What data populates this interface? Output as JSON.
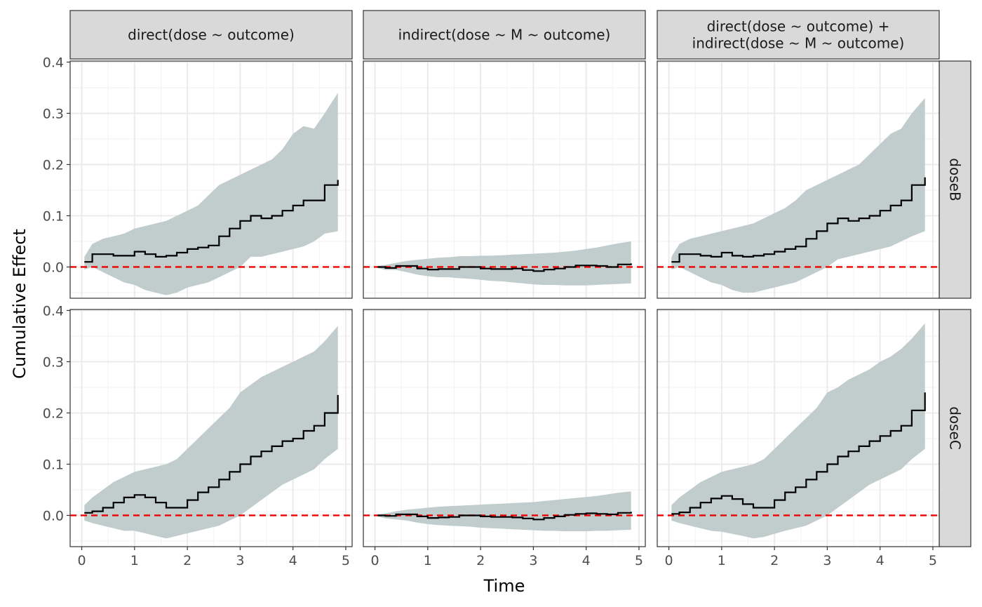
{
  "chart_data": {
    "type": "line",
    "xlabel": "Time",
    "ylabel": "Cumulative Effect",
    "xlim": [
      -0.22,
      5.12
    ],
    "ylim": [
      -0.061,
      0.402
    ],
    "x_ticks": [
      0,
      1,
      2,
      3,
      4,
      5
    ],
    "x_tick_labels": [
      "0",
      "1",
      "2",
      "3",
      "4",
      "5"
    ],
    "y_ticks": [
      0.0,
      0.1,
      0.2,
      0.3,
      0.4
    ],
    "y_tick_labels": [
      "0.0",
      "0.1",
      "0.2",
      "0.3",
      "0.4"
    ],
    "column_strips": [
      [
        "direct(dose ~ outcome)"
      ],
      [
        "indirect(dose ~ M ~ outcome)"
      ],
      [
        "direct(dose ~ outcome) +",
        "indirect(dose ~ M ~ outcome)"
      ]
    ],
    "row_strips": [
      "doseB",
      "doseC"
    ],
    "reference_line": 0,
    "colors": {
      "line": "#000000",
      "band": "#c1cccc",
      "reference": "#ee0000",
      "strip": "#d9d9d9",
      "grid": "#ebebeb"
    },
    "grid": true,
    "panels": [
      {
        "row": "doseB",
        "column": "direct(dose ~ outcome)",
        "x": [
          0.05,
          0.2,
          0.4,
          0.6,
          0.8,
          1.0,
          1.2,
          1.4,
          1.6,
          1.8,
          2.0,
          2.2,
          2.4,
          2.6,
          2.8,
          3.0,
          3.2,
          3.4,
          3.6,
          3.8,
          4.0,
          4.2,
          4.4,
          4.6,
          4.85
        ],
        "y": [
          0.01,
          0.025,
          0.025,
          0.022,
          0.022,
          0.03,
          0.025,
          0.02,
          0.022,
          0.028,
          0.035,
          0.038,
          0.042,
          0.06,
          0.075,
          0.09,
          0.1,
          0.095,
          0.1,
          0.11,
          0.12,
          0.13,
          0.13,
          0.16,
          0.17
        ],
        "lower": [
          -0.005,
          0.0,
          -0.01,
          -0.02,
          -0.03,
          -0.035,
          -0.045,
          -0.05,
          -0.055,
          -0.05,
          -0.04,
          -0.035,
          -0.03,
          -0.02,
          -0.01,
          0.0,
          0.02,
          0.02,
          0.025,
          0.03,
          0.035,
          0.04,
          0.05,
          0.065,
          0.07
        ],
        "upper": [
          0.02,
          0.045,
          0.055,
          0.06,
          0.065,
          0.075,
          0.08,
          0.085,
          0.09,
          0.1,
          0.11,
          0.12,
          0.14,
          0.16,
          0.17,
          0.18,
          0.19,
          0.2,
          0.21,
          0.23,
          0.26,
          0.275,
          0.27,
          0.3,
          0.34
        ]
      },
      {
        "row": "doseB",
        "column": "indirect(dose ~ M ~ outcome)",
        "x": [
          0.05,
          0.2,
          0.4,
          0.6,
          0.8,
          1.0,
          1.2,
          1.4,
          1.6,
          1.8,
          2.0,
          2.2,
          2.4,
          2.6,
          2.8,
          3.0,
          3.2,
          3.4,
          3.6,
          3.8,
          4.0,
          4.2,
          4.4,
          4.6,
          4.85
        ],
        "y": [
          0.0,
          -0.002,
          0.002,
          0.002,
          -0.003,
          -0.005,
          -0.004,
          -0.004,
          0.0,
          0.0,
          -0.003,
          -0.004,
          -0.004,
          -0.003,
          -0.006,
          -0.008,
          -0.005,
          -0.003,
          0.0,
          0.003,
          0.003,
          0.002,
          0.0,
          0.005,
          0.007
        ],
        "lower": [
          -0.002,
          -0.006,
          -0.006,
          -0.01,
          -0.015,
          -0.018,
          -0.02,
          -0.02,
          -0.022,
          -0.023,
          -0.025,
          -0.027,
          -0.028,
          -0.03,
          -0.032,
          -0.034,
          -0.035,
          -0.035,
          -0.036,
          -0.036,
          -0.036,
          -0.035,
          -0.034,
          -0.033,
          -0.032
        ],
        "upper": [
          0.002,
          0.004,
          0.008,
          0.012,
          0.014,
          0.016,
          0.018,
          0.019,
          0.021,
          0.021,
          0.022,
          0.022,
          0.023,
          0.024,
          0.025,
          0.026,
          0.027,
          0.028,
          0.03,
          0.032,
          0.035,
          0.038,
          0.042,
          0.046,
          0.05
        ]
      },
      {
        "row": "doseB",
        "column": "direct(dose ~ outcome) + indirect(dose ~ M ~ outcome)",
        "x": [
          0.05,
          0.2,
          0.4,
          0.6,
          0.8,
          1.0,
          1.2,
          1.4,
          1.6,
          1.8,
          2.0,
          2.2,
          2.4,
          2.6,
          2.8,
          3.0,
          3.2,
          3.4,
          3.6,
          3.8,
          4.0,
          4.2,
          4.4,
          4.6,
          4.85
        ],
        "y": [
          0.01,
          0.025,
          0.025,
          0.022,
          0.02,
          0.028,
          0.022,
          0.02,
          0.022,
          0.025,
          0.03,
          0.035,
          0.04,
          0.055,
          0.07,
          0.085,
          0.095,
          0.09,
          0.095,
          0.1,
          0.11,
          0.12,
          0.13,
          0.16,
          0.175
        ],
        "lower": [
          -0.005,
          0.0,
          -0.01,
          -0.02,
          -0.03,
          -0.035,
          -0.045,
          -0.05,
          -0.05,
          -0.045,
          -0.04,
          -0.035,
          -0.03,
          -0.02,
          -0.01,
          0.0,
          0.015,
          0.02,
          0.025,
          0.03,
          0.035,
          0.04,
          0.05,
          0.06,
          0.07
        ],
        "upper": [
          0.02,
          0.045,
          0.055,
          0.06,
          0.065,
          0.07,
          0.075,
          0.08,
          0.085,
          0.095,
          0.105,
          0.115,
          0.13,
          0.15,
          0.16,
          0.17,
          0.18,
          0.19,
          0.2,
          0.22,
          0.24,
          0.26,
          0.27,
          0.3,
          0.33
        ]
      },
      {
        "row": "doseC",
        "column": "direct(dose ~ outcome)",
        "x": [
          0.05,
          0.2,
          0.4,
          0.6,
          0.8,
          1.0,
          1.2,
          1.4,
          1.6,
          1.8,
          2.0,
          2.2,
          2.4,
          2.6,
          2.8,
          3.0,
          3.2,
          3.4,
          3.6,
          3.8,
          4.0,
          4.2,
          4.4,
          4.6,
          4.85
        ],
        "y": [
          0.005,
          0.008,
          0.015,
          0.025,
          0.035,
          0.04,
          0.035,
          0.025,
          0.015,
          0.015,
          0.03,
          0.045,
          0.055,
          0.07,
          0.085,
          0.1,
          0.115,
          0.125,
          0.135,
          0.145,
          0.15,
          0.165,
          0.175,
          0.2,
          0.235
        ],
        "lower": [
          -0.01,
          -0.015,
          -0.02,
          -0.025,
          -0.03,
          -0.03,
          -0.035,
          -0.04,
          -0.045,
          -0.04,
          -0.035,
          -0.03,
          -0.025,
          -0.02,
          -0.01,
          0.0,
          0.015,
          0.03,
          0.045,
          0.06,
          0.07,
          0.08,
          0.09,
          0.11,
          0.13
        ],
        "upper": [
          0.02,
          0.035,
          0.05,
          0.065,
          0.075,
          0.085,
          0.09,
          0.095,
          0.1,
          0.11,
          0.13,
          0.15,
          0.17,
          0.19,
          0.21,
          0.24,
          0.255,
          0.27,
          0.28,
          0.29,
          0.3,
          0.31,
          0.32,
          0.34,
          0.37
        ]
      },
      {
        "row": "doseC",
        "column": "indirect(dose ~ M ~ outcome)",
        "x": [
          0.05,
          0.2,
          0.4,
          0.6,
          0.8,
          1.0,
          1.2,
          1.4,
          1.6,
          1.8,
          2.0,
          2.2,
          2.4,
          2.6,
          2.8,
          3.0,
          3.2,
          3.4,
          3.6,
          3.8,
          4.0,
          4.2,
          4.4,
          4.6,
          4.85
        ],
        "y": [
          0.0,
          -0.001,
          0.002,
          0.002,
          -0.002,
          -0.005,
          -0.004,
          -0.003,
          0.0,
          0.0,
          -0.002,
          -0.003,
          -0.003,
          -0.004,
          -0.006,
          -0.008,
          -0.005,
          -0.002,
          0.001,
          0.003,
          0.004,
          0.003,
          0.002,
          0.005,
          0.007
        ],
        "lower": [
          -0.002,
          -0.006,
          -0.008,
          -0.01,
          -0.014,
          -0.017,
          -0.019,
          -0.02,
          -0.021,
          -0.022,
          -0.024,
          -0.025,
          -0.026,
          -0.027,
          -0.028,
          -0.029,
          -0.03,
          -0.03,
          -0.031,
          -0.031,
          -0.031,
          -0.03,
          -0.03,
          -0.029,
          -0.028
        ],
        "upper": [
          0.002,
          0.004,
          0.008,
          0.011,
          0.013,
          0.015,
          0.017,
          0.018,
          0.019,
          0.02,
          0.021,
          0.022,
          0.023,
          0.024,
          0.025,
          0.026,
          0.028,
          0.03,
          0.032,
          0.034,
          0.036,
          0.038,
          0.041,
          0.044,
          0.047
        ]
      },
      {
        "row": "doseC",
        "column": "direct(dose ~ outcome) + indirect(dose ~ M ~ outcome)",
        "x": [
          0.05,
          0.2,
          0.4,
          0.6,
          0.8,
          1.0,
          1.2,
          1.4,
          1.6,
          1.8,
          2.0,
          2.2,
          2.4,
          2.6,
          2.8,
          3.0,
          3.2,
          3.4,
          3.6,
          3.8,
          4.0,
          4.2,
          4.4,
          4.6,
          4.85
        ],
        "y": [
          0.003,
          0.006,
          0.015,
          0.025,
          0.033,
          0.038,
          0.032,
          0.022,
          0.015,
          0.015,
          0.03,
          0.045,
          0.055,
          0.07,
          0.085,
          0.1,
          0.115,
          0.125,
          0.135,
          0.145,
          0.155,
          0.165,
          0.175,
          0.205,
          0.24
        ],
        "lower": [
          -0.01,
          -0.015,
          -0.02,
          -0.025,
          -0.03,
          -0.032,
          -0.036,
          -0.04,
          -0.045,
          -0.042,
          -0.036,
          -0.03,
          -0.025,
          -0.02,
          -0.01,
          0.0,
          0.015,
          0.03,
          0.045,
          0.06,
          0.07,
          0.08,
          0.09,
          0.11,
          0.13
        ],
        "upper": [
          0.02,
          0.035,
          0.05,
          0.065,
          0.075,
          0.085,
          0.09,
          0.095,
          0.1,
          0.11,
          0.13,
          0.15,
          0.17,
          0.19,
          0.21,
          0.24,
          0.25,
          0.265,
          0.275,
          0.285,
          0.3,
          0.31,
          0.325,
          0.345,
          0.375
        ]
      }
    ]
  }
}
